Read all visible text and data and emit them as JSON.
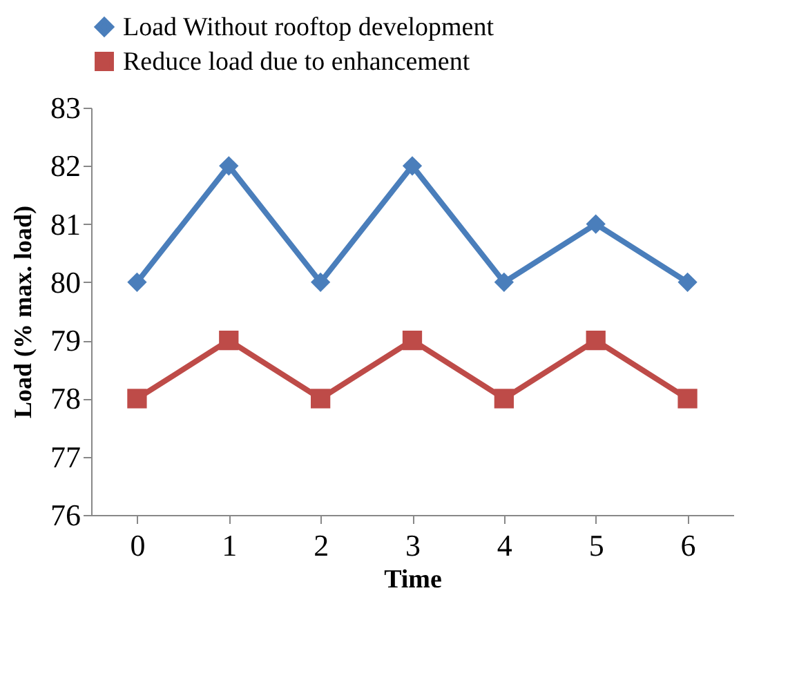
{
  "chart_data": {
    "type": "line",
    "categories": [
      "0",
      "1",
      "2",
      "3",
      "4",
      "5",
      "6"
    ],
    "xlabel": "Time",
    "ylabel": "Load (% max. load)",
    "ylim": [
      76,
      83
    ],
    "yticks": [
      76,
      77,
      78,
      79,
      80,
      81,
      82,
      83
    ],
    "grid": false,
    "legend": "top",
    "series": [
      {
        "name": "Load Without rooftop development",
        "color": "#4a7ebb",
        "marker": "diamond",
        "values": [
          80,
          82,
          80,
          82,
          80,
          81,
          80
        ]
      },
      {
        "name": "Reduce load due to enhancement",
        "color": "#be4b48",
        "marker": "square",
        "values": [
          78,
          79,
          78,
          79,
          78,
          79,
          78
        ]
      }
    ]
  }
}
